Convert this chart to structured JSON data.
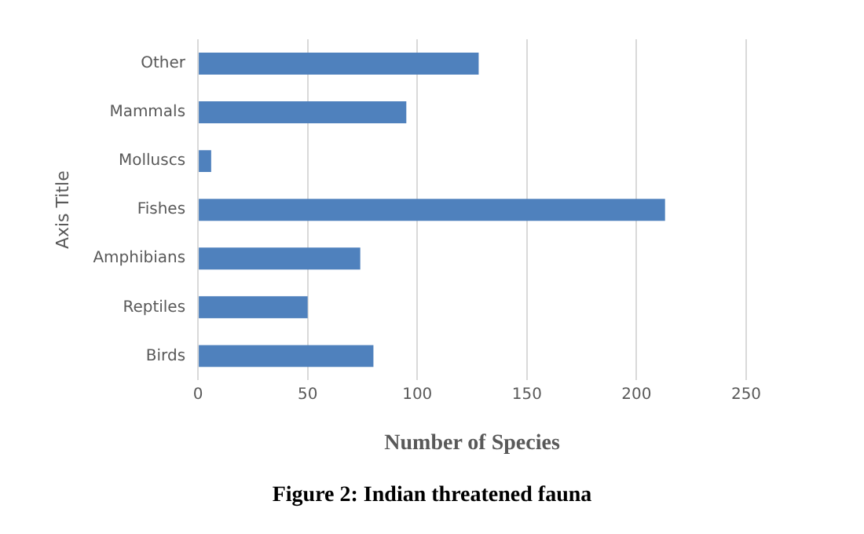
{
  "chart_data": {
    "type": "bar",
    "orientation": "horizontal",
    "categories": [
      "Other",
      "Mammals",
      "Molluscs",
      "Fishes",
      "Amphibians",
      "Reptiles",
      "Birds"
    ],
    "values": [
      128,
      95,
      6,
      213,
      74,
      50,
      80
    ],
    "color": "#4f81bd",
    "xlim": [
      0,
      250
    ],
    "xticks": [
      0,
      50,
      100,
      150,
      200,
      250
    ],
    "grid": "x",
    "xlabel": "Number of Species",
    "ylabel": "Axis Title",
    "annotations": [
      "Figure 2: Indian threatened fauna"
    ]
  }
}
